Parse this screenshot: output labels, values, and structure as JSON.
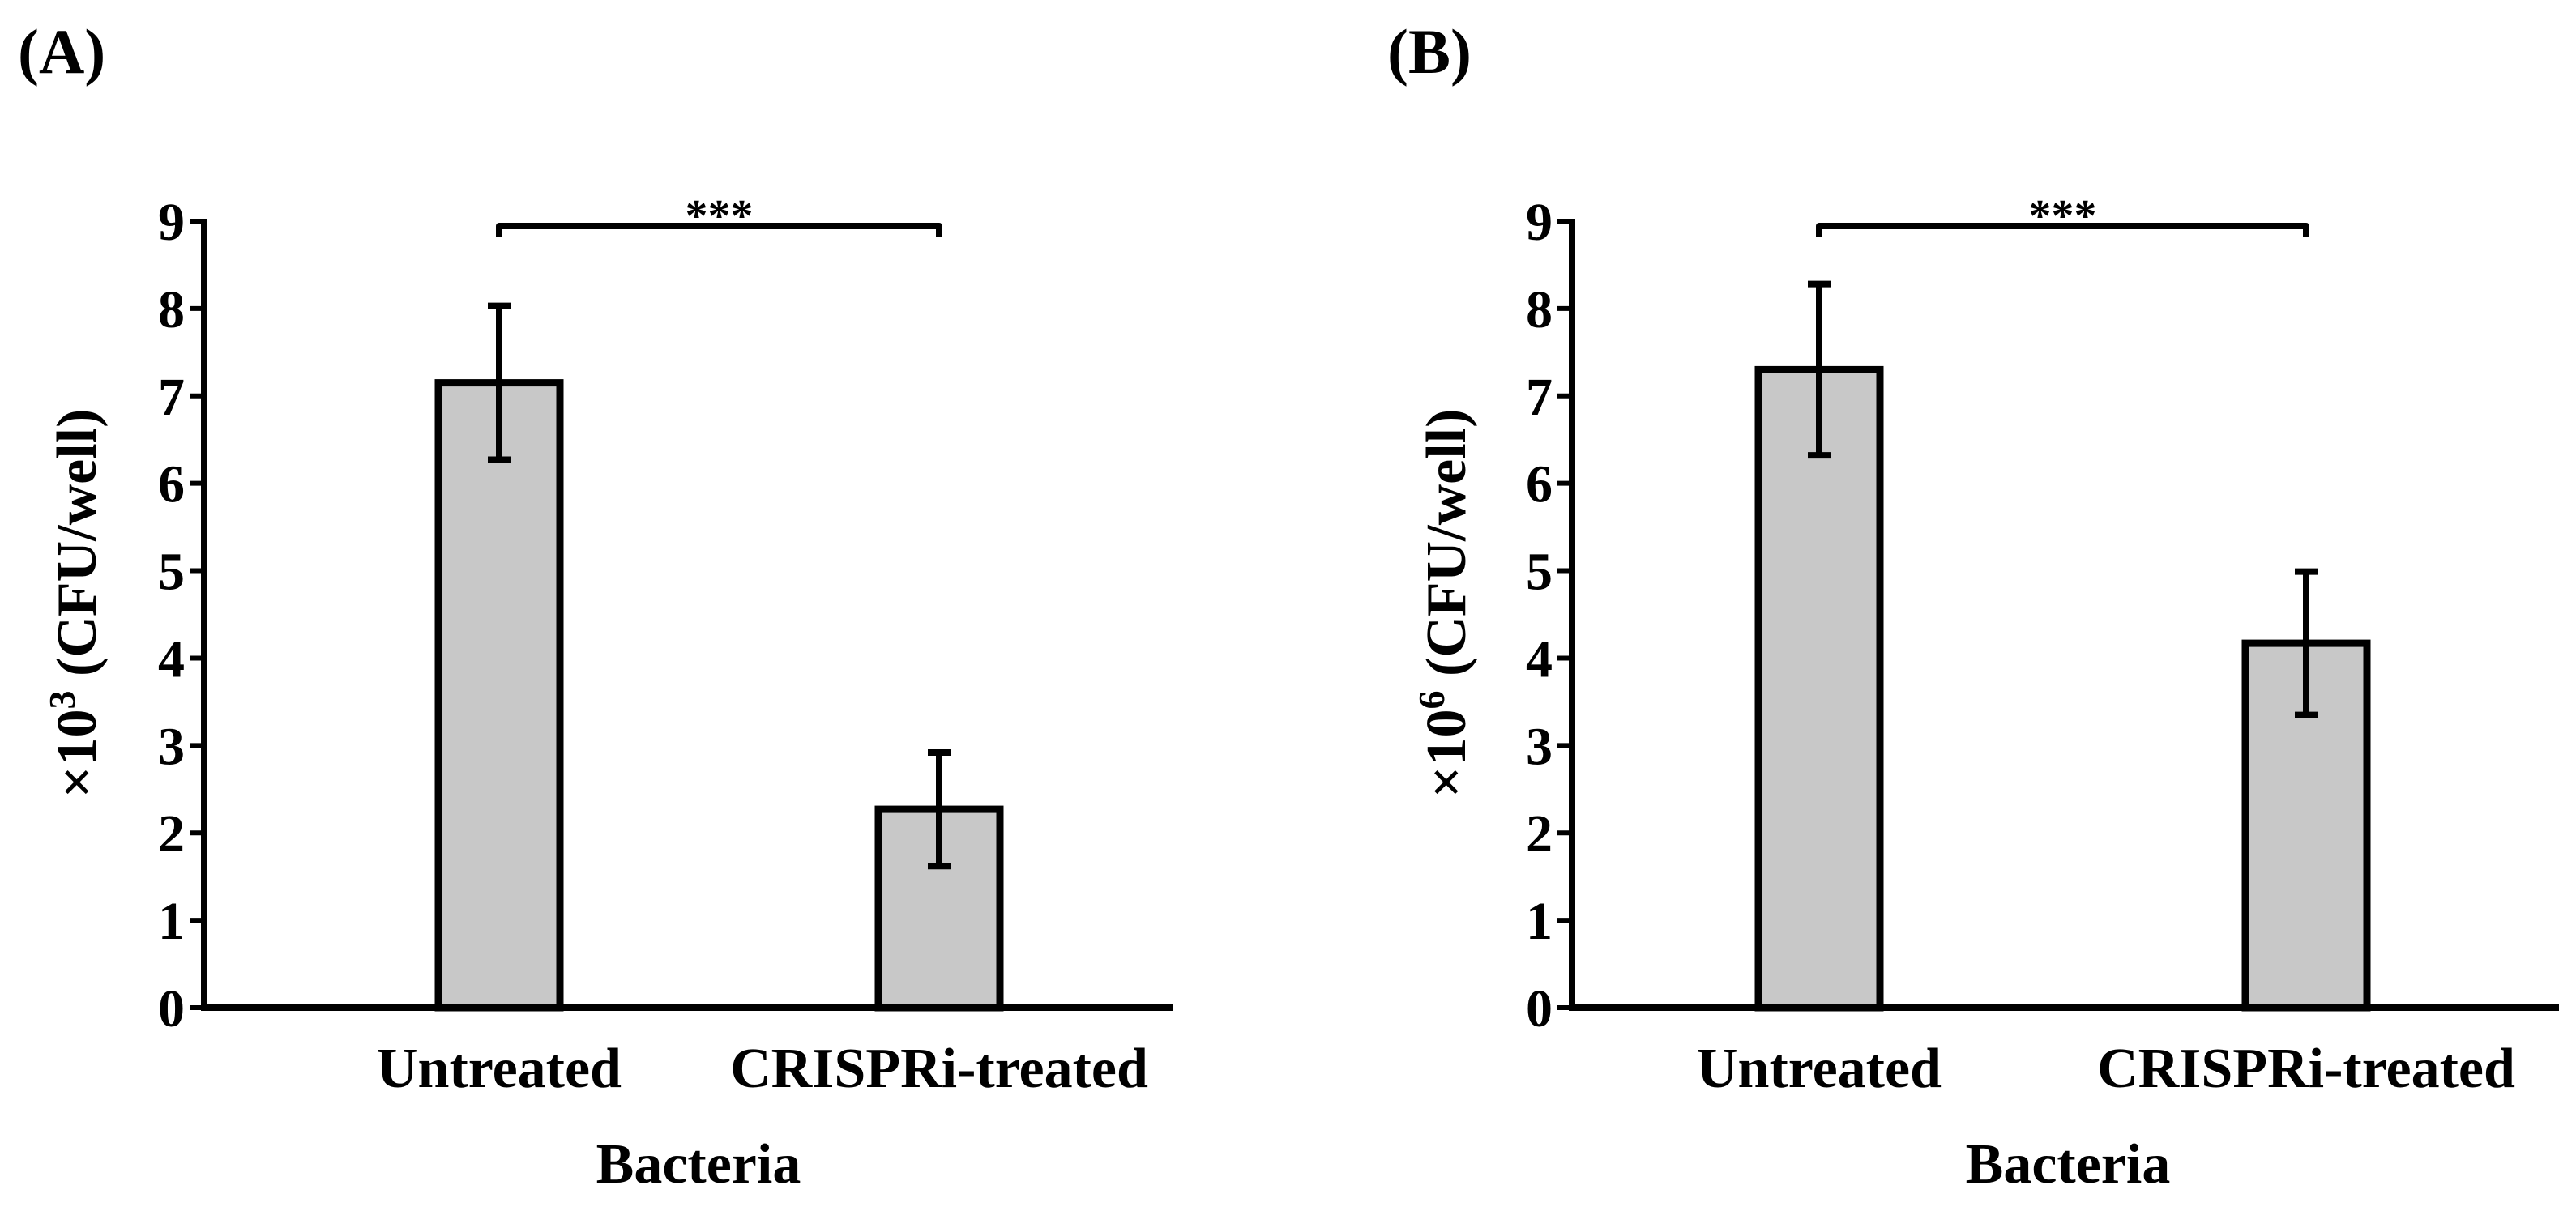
{
  "chart_data": [
    {
      "panel": "(A)",
      "type": "bar",
      "categories": [
        "Untreated",
        "CRISPRi-treated"
      ],
      "values": [
        7.15,
        2.27
      ],
      "errors": [
        0.88,
        0.65
      ],
      "ylim": [
        0,
        9
      ],
      "yticks": [
        "0",
        "1",
        "2",
        "3",
        "4",
        "5",
        "6",
        "7",
        "8",
        "9"
      ],
      "ylabel_prefix": "×10",
      "ylabel_exponent": "3",
      "ylabel_suffix": " (CFU/well)",
      "xlabel": "Bacteria",
      "significance": "***",
      "bar_fill": "#c8c8c8",
      "stroke_color": "#000000"
    },
    {
      "panel": "(B)",
      "type": "bar",
      "categories": [
        "Untreated",
        "CRISPRi-treated"
      ],
      "values": [
        7.3,
        4.17
      ],
      "errors": [
        0.98,
        0.82
      ],
      "ylim": [
        0,
        9
      ],
      "yticks": [
        "0",
        "1",
        "2",
        "3",
        "4",
        "5",
        "6",
        "7",
        "8",
        "9"
      ],
      "ylabel_prefix": "×10",
      "ylabel_exponent": "6",
      "ylabel_suffix": " (CFU/well)",
      "xlabel": "Bacteria",
      "significance": "***",
      "bar_fill": "#c8c8c8",
      "stroke_color": "#000000"
    }
  ]
}
